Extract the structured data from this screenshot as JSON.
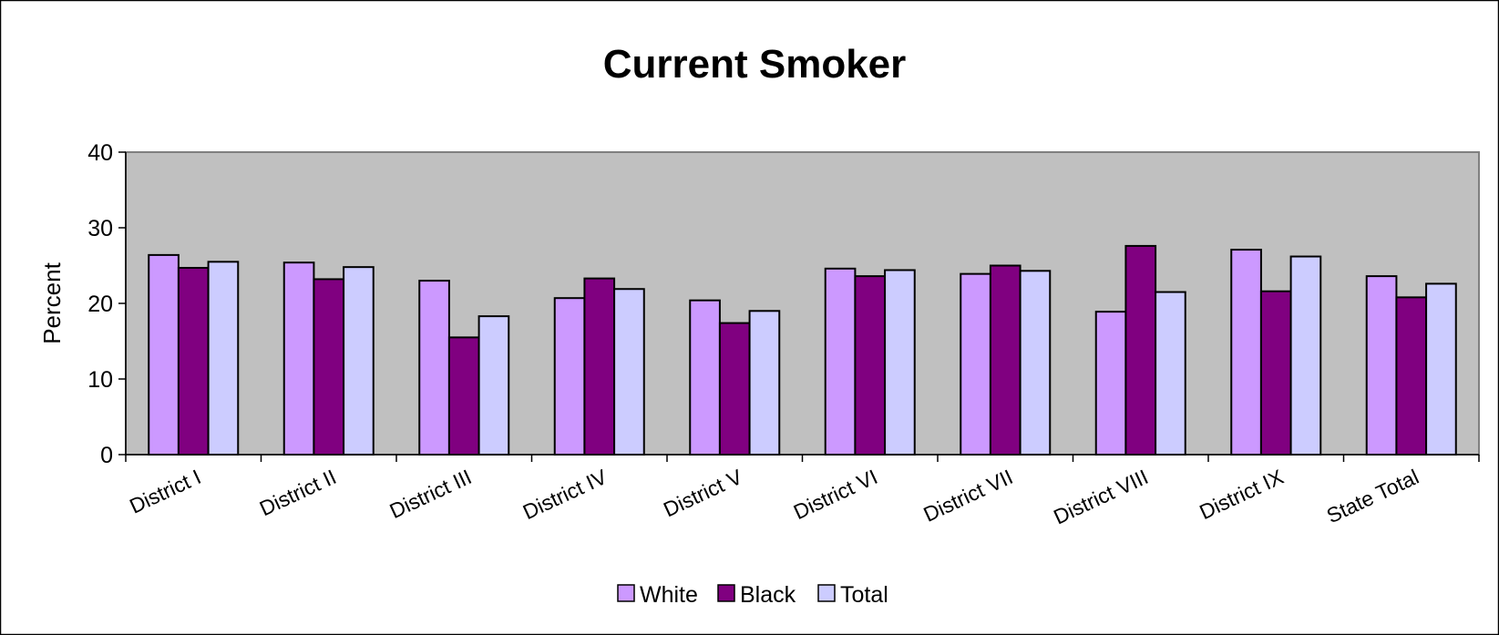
{
  "chart_data": {
    "type": "bar",
    "title": "Current Smoker",
    "xlabel": "",
    "ylabel": "Percent",
    "ylim": [
      0,
      40
    ],
    "yticks": [
      0,
      10,
      20,
      30,
      40
    ],
    "grid": false,
    "legend_position": "bottom",
    "plot_background": "#c0c0c0",
    "categories": [
      "District I",
      "District II",
      "District III",
      "District IV",
      "District V",
      "District VI",
      "District VII",
      "District VIII",
      "District IX",
      "State Total"
    ],
    "series": [
      {
        "name": "White",
        "color": "#cc99ff",
        "values": [
          26.4,
          25.4,
          23.0,
          20.7,
          20.4,
          24.6,
          23.9,
          18.9,
          27.1,
          23.6
        ]
      },
      {
        "name": "Black",
        "color": "#800080",
        "values": [
          24.7,
          23.2,
          15.5,
          23.3,
          17.4,
          23.6,
          25.0,
          27.6,
          21.6,
          20.8
        ]
      },
      {
        "name": "Total",
        "color": "#ccccff",
        "values": [
          25.5,
          24.8,
          18.3,
          21.9,
          19.0,
          24.4,
          24.3,
          21.5,
          26.2,
          22.6
        ]
      }
    ]
  }
}
